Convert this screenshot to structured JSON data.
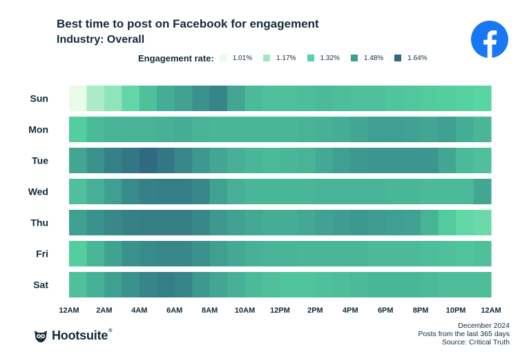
{
  "header": {
    "title": "Best time to post on Facebook for engagement",
    "subtitle": "Industry: Overall"
  },
  "legend": {
    "title": "Engagement rate:",
    "items": [
      {
        "label": "1.01%",
        "color": "#e9fbe9"
      },
      {
        "label": "1.17%",
        "color": "#9ee8c0"
      },
      {
        "label": "1.32%",
        "color": "#57d3a1"
      },
      {
        "label": "1.48%",
        "color": "#3f9e91"
      },
      {
        "label": "1.64%",
        "color": "#2f6a80"
      }
    ]
  },
  "footer": {
    "date": "December 2024",
    "period": "Posts from the last 365 days",
    "source": "Source: Critical Truth",
    "brand": "Hootsuite",
    "brand_mark": "®"
  },
  "colors": {
    "scale_min": "#e9fbe9",
    "scale_max": "#2f6a80",
    "title_text": "#0f2a3a",
    "facebook_blue": "#1877f2"
  },
  "icons": {
    "top_right": "facebook-icon",
    "footer": "hootsuite-owl-icon"
  },
  "chart_data": {
    "type": "heatmap",
    "rows": [
      "Sun",
      "Mon",
      "Tue",
      "Wed",
      "Thu",
      "Fri",
      "Sat"
    ],
    "x_tick_labels": [
      "12AM",
      "2AM",
      "4AM",
      "6AM",
      "8AM",
      "10AM",
      "12PM",
      "2PM",
      "4PM",
      "6PM",
      "8PM",
      "10PM",
      "12AM"
    ],
    "hours": 24,
    "value_range": [
      1.01,
      1.64
    ],
    "unit": "%",
    "values": [
      [
        1.01,
        1.14,
        1.2,
        1.3,
        1.38,
        1.44,
        1.47,
        1.52,
        1.56,
        1.46,
        1.4,
        1.38,
        1.38,
        1.39,
        1.4,
        1.39,
        1.38,
        1.38,
        1.37,
        1.36,
        1.35,
        1.34,
        1.33,
        1.32
      ],
      [
        1.34,
        1.4,
        1.42,
        1.42,
        1.42,
        1.43,
        1.44,
        1.42,
        1.41,
        1.41,
        1.41,
        1.41,
        1.41,
        1.42,
        1.43,
        1.44,
        1.46,
        1.48,
        1.48,
        1.47,
        1.46,
        1.48,
        1.44,
        1.41
      ],
      [
        1.46,
        1.52,
        1.57,
        1.6,
        1.64,
        1.6,
        1.55,
        1.5,
        1.46,
        1.43,
        1.41,
        1.4,
        1.41,
        1.42,
        1.45,
        1.48,
        1.5,
        1.51,
        1.51,
        1.51,
        1.51,
        1.46,
        1.4,
        1.38
      ],
      [
        1.38,
        1.43,
        1.48,
        1.54,
        1.57,
        1.58,
        1.58,
        1.55,
        1.47,
        1.43,
        1.41,
        1.41,
        1.41,
        1.41,
        1.42,
        1.42,
        1.42,
        1.42,
        1.41,
        1.41,
        1.4,
        1.4,
        1.4,
        1.46
      ],
      [
        1.48,
        1.52,
        1.55,
        1.57,
        1.58,
        1.58,
        1.58,
        1.55,
        1.5,
        1.47,
        1.45,
        1.44,
        1.44,
        1.45,
        1.47,
        1.49,
        1.5,
        1.49,
        1.48,
        1.47,
        1.42,
        1.35,
        1.3,
        1.28
      ],
      [
        1.34,
        1.41,
        1.47,
        1.52,
        1.54,
        1.55,
        1.55,
        1.52,
        1.48,
        1.45,
        1.43,
        1.42,
        1.42,
        1.41,
        1.41,
        1.41,
        1.41,
        1.4,
        1.4,
        1.4,
        1.39,
        1.38,
        1.37,
        1.38
      ],
      [
        1.38,
        1.43,
        1.48,
        1.52,
        1.56,
        1.58,
        1.56,
        1.5,
        1.46,
        1.43,
        1.4,
        1.38,
        1.37,
        1.37,
        1.38,
        1.39,
        1.4,
        1.41,
        1.41,
        1.41,
        1.4,
        1.39,
        1.39,
        1.39
      ]
    ]
  }
}
